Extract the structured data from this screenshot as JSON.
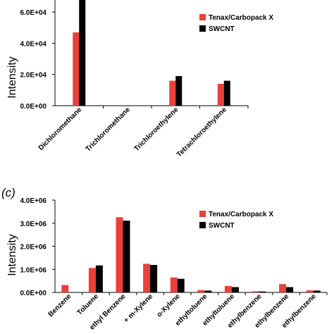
{
  "chart_data": [
    {
      "type": "bar",
      "panel_label": "",
      "ylabel": "Intensity",
      "ylim": [
        0,
        70000
      ],
      "yticks": [
        "0.0E+00",
        "2.0E+04",
        "4.0E+04",
        "6.0E+04"
      ],
      "categories": [
        "Dichloromethane",
        "Trichloromethane",
        "Trichloroethylene",
        "Tetrachloroethylene"
      ],
      "series": [
        {
          "name": "Tenax/Carbopack X",
          "color": "#e8413a",
          "values": [
            47000,
            0,
            16000,
            14000
          ]
        },
        {
          "name": "SWCNT",
          "color": "#000000",
          "values": [
            70000,
            0,
            19000,
            16000
          ]
        }
      ],
      "legend": "top-right",
      "grid": false
    },
    {
      "type": "bar",
      "panel_label": "(c)",
      "ylabel": "Intensity",
      "ylim": [
        0,
        4000000
      ],
      "yticks": [
        "0.0E+00",
        "1.0E+06",
        "2.0E+06",
        "3.0E+06",
        "4.0E+06"
      ],
      "categories": [
        "Benzene",
        "Toluene",
        "ethyl Benzene",
        "+ m-Xylene",
        "o-Xylene",
        "ethyltoluene",
        "ethyltoluene",
        "ethylbenzene",
        "ethylbenzene",
        "ethylbenzene"
      ],
      "series": [
        {
          "name": "Tenax/Carbopack X",
          "color": "#e8413a",
          "values": [
            320000,
            1060000,
            3260000,
            1240000,
            650000,
            100000,
            280000,
            50000,
            360000,
            90000
          ]
        },
        {
          "name": "SWCNT",
          "color": "#000000",
          "values": [
            0,
            1170000,
            3110000,
            1190000,
            590000,
            80000,
            230000,
            40000,
            230000,
            80000
          ]
        }
      ],
      "legend": "top-right",
      "grid": false
    }
  ]
}
